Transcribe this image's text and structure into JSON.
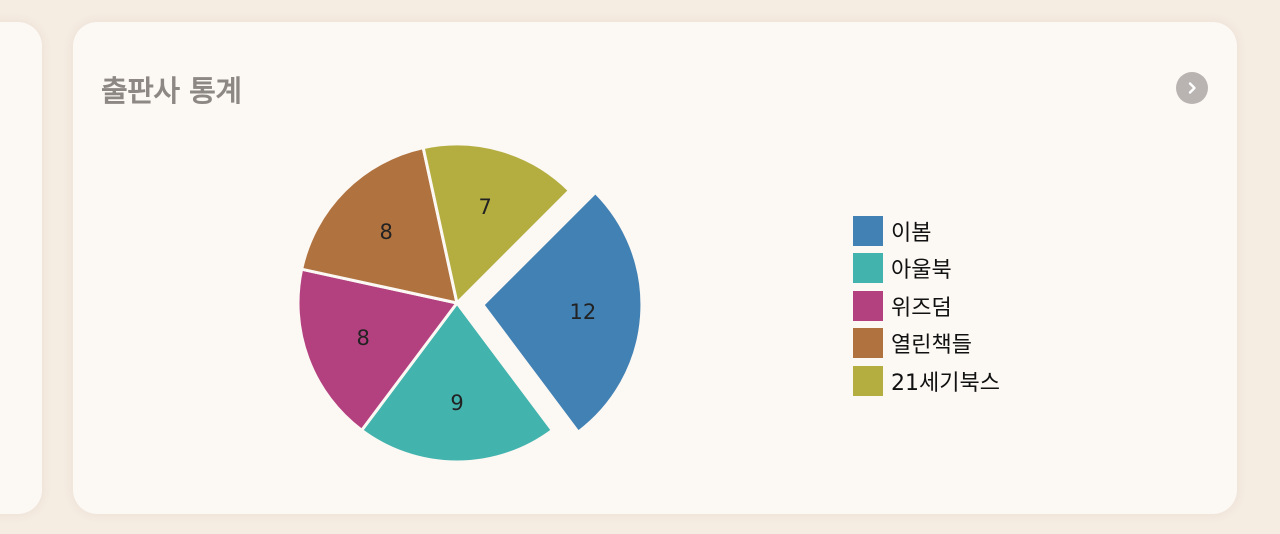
{
  "card": {
    "title": "출판사 통계"
  },
  "icons": {
    "next": "chevron-right-icon"
  },
  "chart_data": {
    "type": "pie",
    "title": "출판사 통계",
    "categories": [
      "이봄",
      "아울북",
      "위즈덤",
      "열린책들",
      "21세기북스"
    ],
    "values": [
      12,
      9,
      8,
      8,
      7
    ],
    "colors": [
      "#4281b4",
      "#43b3ae",
      "#b34180",
      "#b07340",
      "#b4ae41"
    ],
    "exploded": "이봄",
    "legend": "right"
  }
}
